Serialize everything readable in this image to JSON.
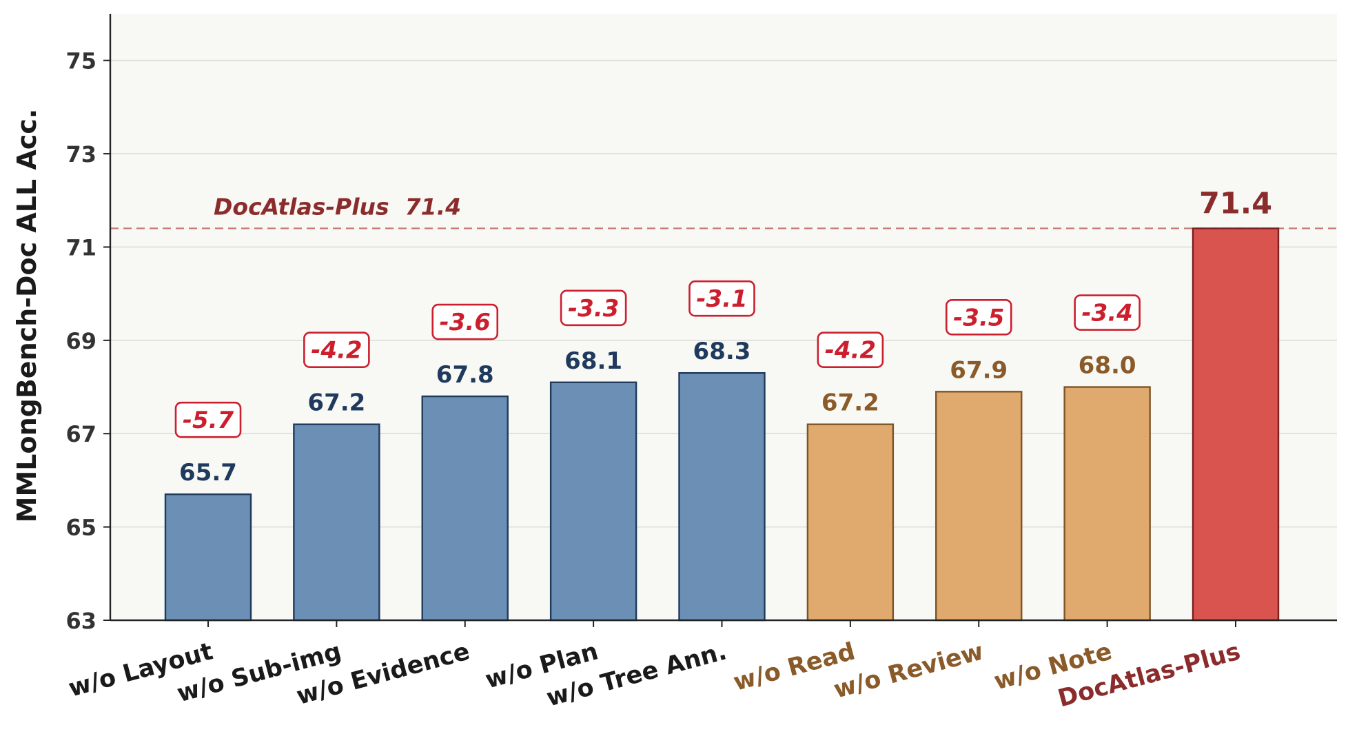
{
  "chart_data": {
    "type": "bar",
    "ylabel": "MMLongBench-Doc ALL Acc.",
    "ylim": [
      63,
      76
    ],
    "yticks": [
      63,
      65,
      67,
      69,
      71,
      73,
      75
    ],
    "grid": true,
    "categories": [
      "w/o Layout",
      "w/o Sub-img",
      "w/o Evidence",
      "w/o Plan",
      "w/o Tree Ann.",
      "w/o Read",
      "w/o Review",
      "w/o Note",
      "DocAtlas-Plus"
    ],
    "values": [
      65.7,
      67.2,
      67.8,
      68.1,
      68.3,
      67.2,
      67.9,
      68.0,
      71.4
    ],
    "value_labels": [
      "65.7",
      "67.2",
      "67.8",
      "68.1",
      "68.3",
      "67.2",
      "67.9",
      "68.0",
      "71.4"
    ],
    "deltas": [
      "-5.7",
      "-4.2",
      "-3.6",
      "-3.3",
      "-3.1",
      "-4.2",
      "-3.5",
      "-3.4",
      ""
    ],
    "groups": [
      "blue",
      "blue",
      "blue",
      "blue",
      "blue",
      "orange",
      "orange",
      "orange",
      "red"
    ],
    "reference_line": {
      "value": 71.4,
      "label": "DocAtlas-Plus  71.4"
    },
    "colors": {
      "blue_fill": "#6b8fb5",
      "blue_edge": "#1f3a5c",
      "blue_text": "#1f3a5c",
      "orange_fill": "#e0a96d",
      "orange_edge": "#7d5426",
      "orange_text": "#8a5a28",
      "red_fill": "#d9534f",
      "red_edge": "#7a2020",
      "red_text": "#8b2c2c",
      "delta_text": "#cc1f2e",
      "delta_border": "#cc1f2e",
      "plot_bg": "#f8f8f5",
      "grid": "#dcdcd8",
      "axis": "#222222",
      "tick_text": "#333333",
      "ref_line": "#c77a7a"
    }
  }
}
